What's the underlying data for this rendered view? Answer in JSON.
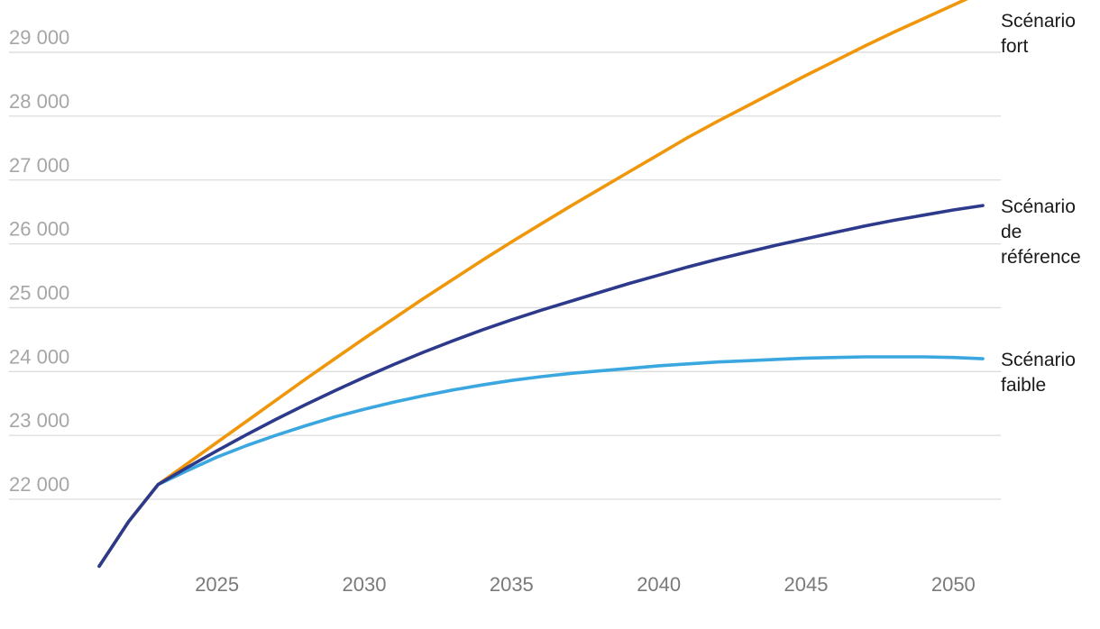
{
  "chart_data": {
    "type": "line",
    "title": "",
    "xlabel": "",
    "ylabel": "",
    "xlim": [
      2021,
      2051
    ],
    "ylim": [
      20500,
      29500
    ],
    "yticks": [
      22000,
      23000,
      24000,
      25000,
      26000,
      27000,
      28000,
      29000
    ],
    "ytick_labels": [
      "22 000",
      "23 000",
      "24 000",
      "25 000",
      "26 000",
      "27 000",
      "28 000",
      "29 000"
    ],
    "xticks": [
      2025,
      2030,
      2035,
      2040,
      2045,
      2050
    ],
    "xtick_labels": [
      "2025",
      "2030",
      "2035",
      "2040",
      "2045",
      "2050"
    ],
    "grid": true,
    "series": [
      {
        "name": "Scénario fort",
        "label_lines": [
          "Scénario",
          "fort"
        ],
        "color": "#f0960a",
        "x": [
          2021,
          2022,
          2023,
          2024,
          2025,
          2026,
          2027,
          2028,
          2029,
          2030,
          2031,
          2032,
          2033,
          2034,
          2035,
          2036,
          2037,
          2038,
          2039,
          2040,
          2041,
          2042,
          2043,
          2044,
          2045,
          2046,
          2047,
          2048,
          2049,
          2050,
          2051
        ],
        "values": [
          20950,
          21650,
          22230,
          22560,
          22890,
          23220,
          23550,
          23880,
          24200,
          24520,
          24830,
          25140,
          25440,
          25740,
          26030,
          26310,
          26590,
          26860,
          27130,
          27400,
          27670,
          27920,
          28160,
          28400,
          28640,
          28870,
          29100,
          29320,
          29530,
          29740,
          29950
        ]
      },
      {
        "name": "Scénario de référence",
        "label_lines": [
          "Scénario",
          "de",
          "référence"
        ],
        "color": "#2d3a8c",
        "x": [
          2021,
          2022,
          2023,
          2024,
          2025,
          2026,
          2027,
          2028,
          2029,
          2030,
          2031,
          2032,
          2033,
          2034,
          2035,
          2036,
          2037,
          2038,
          2039,
          2040,
          2041,
          2042,
          2043,
          2044,
          2045,
          2046,
          2047,
          2048,
          2049,
          2050,
          2051
        ],
        "values": [
          20950,
          21650,
          22230,
          22500,
          22760,
          23010,
          23250,
          23480,
          23700,
          23910,
          24110,
          24300,
          24480,
          24650,
          24810,
          24960,
          25100,
          25240,
          25380,
          25510,
          25640,
          25760,
          25870,
          25980,
          26080,
          26180,
          26280,
          26370,
          26450,
          26530,
          26600
        ]
      },
      {
        "name": "Scénario faible",
        "label_lines": [
          "Scénario",
          "faible"
        ],
        "color": "#3ba7e0",
        "x": [
          2021,
          2022,
          2023,
          2024,
          2025,
          2026,
          2027,
          2028,
          2029,
          2030,
          2031,
          2032,
          2033,
          2034,
          2035,
          2036,
          2037,
          2038,
          2039,
          2040,
          2041,
          2042,
          2043,
          2044,
          2045,
          2046,
          2047,
          2048,
          2049,
          2050,
          2051
        ],
        "values": [
          20950,
          21650,
          22230,
          22450,
          22660,
          22840,
          23000,
          23150,
          23290,
          23410,
          23520,
          23620,
          23710,
          23790,
          23860,
          23920,
          23970,
          24010,
          24050,
          24090,
          24120,
          24150,
          24170,
          24190,
          24210,
          24220,
          24230,
          24230,
          24230,
          24220,
          24200
        ]
      }
    ]
  }
}
